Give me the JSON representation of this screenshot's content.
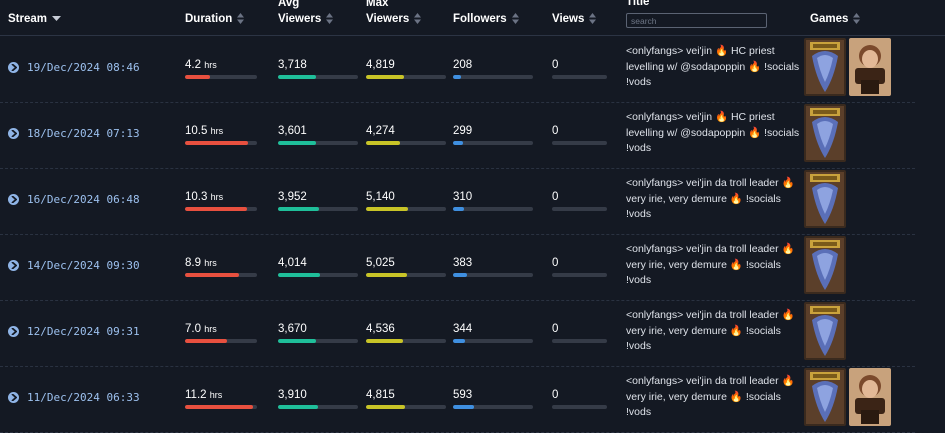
{
  "headers": {
    "stream": "Stream",
    "duration": "Duration",
    "avg_viewers_line1": "Avg",
    "avg_viewers_line2": "Viewers",
    "max_viewers_line1": "Max",
    "max_viewers_line2": "Viewers",
    "followers": "Followers",
    "views": "Views",
    "title": "Title",
    "games": "Games"
  },
  "search": {
    "placeholder": "search"
  },
  "colors": {
    "duration": "#e8503f",
    "avg": "#1fbf9a",
    "max": "#c8c427",
    "followers": "#3f8fe0",
    "views": "#353b47"
  },
  "rows": [
    {
      "date": "19/Dec/2024 08:46",
      "duration": "4.2",
      "duration_unit": "hrs",
      "duration_fill": 0.35,
      "avg_viewers": "3,718",
      "avg_fill": 0.48,
      "max_viewers": "4,819",
      "max_fill": 0.48,
      "followers": "208",
      "followers_fill": 0.1,
      "views": "0",
      "views_fill": 0,
      "title_lines": [
        "<onlyfangs> vei'jin 🔥 HC priest",
        "levelling w/ @sodapoppin 🔥 !socials",
        "!vods"
      ],
      "games": [
        "World of Warcraft",
        "Just Chatting"
      ]
    },
    {
      "date": "18/Dec/2024 07:13",
      "duration": "10.5",
      "duration_unit": "hrs",
      "duration_fill": 0.88,
      "avg_viewers": "3,601",
      "avg_fill": 0.47,
      "max_viewers": "4,274",
      "max_fill": 0.43,
      "followers": "299",
      "followers_fill": 0.13,
      "views": "0",
      "views_fill": 0,
      "title_lines": [
        "<onlyfangs> vei'jin 🔥 HC priest",
        "levelling w/ @sodapoppin 🔥 !socials",
        "!vods"
      ],
      "games": [
        "World of Warcraft"
      ]
    },
    {
      "date": "16/Dec/2024 06:48",
      "duration": "10.3",
      "duration_unit": "hrs",
      "duration_fill": 0.86,
      "avg_viewers": "3,952",
      "avg_fill": 0.51,
      "max_viewers": "5,140",
      "max_fill": 0.52,
      "followers": "310",
      "followers_fill": 0.14,
      "views": "0",
      "views_fill": 0,
      "title_lines": [
        "<onlyfangs> vei'jin da troll leader 🔥",
        "very irie, very demure 🔥 !socials",
        "!vods"
      ],
      "games": [
        "World of Warcraft"
      ]
    },
    {
      "date": "14/Dec/2024 09:30",
      "duration": "8.9",
      "duration_unit": "hrs",
      "duration_fill": 0.75,
      "avg_viewers": "4,014",
      "avg_fill": 0.52,
      "max_viewers": "5,025",
      "max_fill": 0.51,
      "followers": "383",
      "followers_fill": 0.17,
      "views": "0",
      "views_fill": 0,
      "title_lines": [
        "<onlyfangs> vei'jin da troll leader 🔥",
        "very irie, very demure 🔥 !socials",
        "!vods"
      ],
      "games": [
        "World of Warcraft"
      ]
    },
    {
      "date": "12/Dec/2024 09:31",
      "duration": "7.0",
      "duration_unit": "hrs",
      "duration_fill": 0.59,
      "avg_viewers": "3,670",
      "avg_fill": 0.47,
      "max_viewers": "4,536",
      "max_fill": 0.46,
      "followers": "344",
      "followers_fill": 0.15,
      "views": "0",
      "views_fill": 0,
      "title_lines": [
        "<onlyfangs> vei'jin da troll leader 🔥",
        "very irie, very demure 🔥 !socials",
        "!vods"
      ],
      "games": [
        "World of Warcraft"
      ]
    },
    {
      "date": "11/Dec/2024 06:33",
      "duration": "11.2",
      "duration_unit": "hrs",
      "duration_fill": 0.94,
      "avg_viewers": "3,910",
      "avg_fill": 0.5,
      "max_viewers": "4,815",
      "max_fill": 0.49,
      "followers": "593",
      "followers_fill": 0.26,
      "views": "0",
      "views_fill": 0,
      "title_lines": [
        "<onlyfangs> vei'jin da troll leader 🔥",
        "very irie, very demure 🔥 !socials",
        "!vods"
      ],
      "games": [
        "World of Warcraft",
        "Just Chatting"
      ]
    }
  ]
}
